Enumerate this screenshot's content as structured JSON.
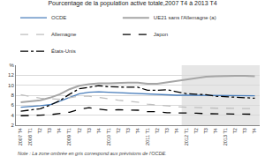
{
  "chart_data": {
    "type": "line",
    "title": "Pourcentage de la population active totale,2007 T4 à 2013 T4",
    "note": "Note : La zone ombrée en gris correspond aux prévisions de l'OCDE.",
    "shaded": [
      "2012 T1",
      "T4"
    ],
    "categories": [
      "2007 T4",
      "2008 T1",
      "T2",
      "T3",
      "T4",
      "2009 T1",
      "T2",
      "T3",
      "T4",
      "2010 T1",
      "T2",
      "T3",
      "T4",
      "2011 T1",
      "T2",
      "T3",
      "T4",
      "2012 T1",
      "T2",
      "T3",
      "T4",
      "2013 T1",
      "T2",
      "T3",
      "T4"
    ],
    "series": [
      {
        "name": "OCDE",
        "color": "#4a7ebb",
        "line_style": "solid",
        "values": [
          5.6,
          5.7,
          5.9,
          6.1,
          6.8,
          7.6,
          8.3,
          8.6,
          8.7,
          8.6,
          8.5,
          8.5,
          8.4,
          8.2,
          8.1,
          8.1,
          8.0,
          8.0,
          8.0,
          8.0,
          8.0,
          7.9,
          7.9,
          7.9,
          7.9
        ]
      },
      {
        "name": "UE21 sans l'Allemagne (a)",
        "color": "#a6a6a6",
        "line_style": "solid",
        "values": [
          6.6,
          6.8,
          7.0,
          7.5,
          8.2,
          9.2,
          9.9,
          10.2,
          10.4,
          10.4,
          10.5,
          10.5,
          10.5,
          10.3,
          10.3,
          10.6,
          10.9,
          11.2,
          11.5,
          11.7,
          11.8,
          11.9,
          11.9,
          11.9,
          11.8
        ]
      },
      {
        "name": "Allemagne",
        "color": "#bfbfbf",
        "line_style": "dash",
        "values": [
          8.1,
          7.7,
          7.4,
          7.3,
          7.2,
          7.5,
          7.8,
          7.8,
          7.6,
          7.3,
          7.0,
          6.8,
          6.6,
          6.2,
          6.0,
          5.8,
          5.7,
          5.6,
          5.5,
          5.5,
          5.4,
          5.4,
          5.4,
          5.3,
          5.3
        ]
      },
      {
        "name": "Japon",
        "color": "#000000",
        "line_style": "dash",
        "values": [
          3.9,
          3.9,
          4.0,
          4.1,
          4.3,
          4.6,
          5.2,
          5.5,
          5.2,
          5.0,
          5.1,
          5.1,
          5.0,
          4.7,
          4.7,
          4.5,
          4.5,
          4.5,
          4.4,
          4.3,
          4.3,
          4.3,
          4.2,
          4.2,
          4.2
        ]
      },
      {
        "name": "États-Unis",
        "color": "#000000",
        "line_style": "dashdot",
        "values": [
          4.8,
          5.0,
          5.3,
          6.0,
          6.9,
          8.2,
          9.3,
          9.6,
          9.9,
          9.7,
          9.6,
          9.6,
          9.6,
          9.0,
          9.0,
          9.1,
          8.7,
          8.3,
          8.2,
          8.1,
          7.8,
          7.7,
          7.6,
          7.5,
          7.4
        ]
      }
    ],
    "ylim": [
      2,
      14
    ],
    "yticks": [
      2,
      4,
      6,
      8,
      10,
      12,
      {
        "value": 14,
        "label": "%"
      }
    ],
    "grid": true,
    "legend": "top"
  }
}
